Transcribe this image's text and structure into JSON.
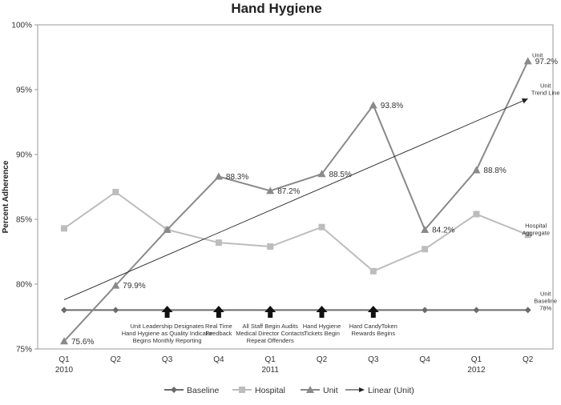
{
  "chart_data": {
    "type": "line",
    "title": "Hand Hygiene",
    "ylabel": "Percent Adherence",
    "xlabel": "",
    "ylim": [
      75,
      100
    ],
    "yticks": [
      "75%",
      "80%",
      "85%",
      "90%",
      "95%",
      "100%"
    ],
    "categories": [
      "Q1",
      "Q2",
      "Q3",
      "Q4",
      "Q1",
      "Q2",
      "Q3",
      "Q4",
      "Q1",
      "Q2"
    ],
    "years": [
      {
        "label": "2010",
        "index": 0
      },
      {
        "label": "2011",
        "index": 4
      },
      {
        "label": "2012",
        "index": 8
      }
    ],
    "series": [
      {
        "name": "Baseline",
        "color": "#6b6b6b",
        "marker": "diamond",
        "values": [
          78,
          78,
          78,
          78,
          78,
          78,
          78,
          78,
          78,
          78
        ]
      },
      {
        "name": "Hospital",
        "color": "#bdbdbd",
        "marker": "square",
        "values": [
          84.3,
          87.1,
          84.2,
          83.2,
          82.9,
          84.4,
          81.0,
          82.7,
          85.4,
          83.8
        ]
      },
      {
        "name": "Unit",
        "color": "#8a8a8a",
        "marker": "triangle",
        "values": [
          75.6,
          79.9,
          84.2,
          88.3,
          87.2,
          88.5,
          93.8,
          84.2,
          88.8,
          97.2
        ],
        "labels": [
          "75.6%",
          "79.9%",
          null,
          "88.3%",
          "87.2%",
          "88.5%",
          "93.8%",
          "84.2%",
          "88.8%",
          "97.2%"
        ]
      }
    ],
    "trendline": {
      "name": "Linear (Unit)",
      "color": "#222222",
      "start": 78.8,
      "end": 94.3
    },
    "annotations": [
      {
        "index": 2,
        "lines": [
          "Unit Leadership Designates",
          "Hand Hygiene as Quality Indicator",
          "Begins Monthly Reporting"
        ]
      },
      {
        "index": 3,
        "lines": [
          "Real Time",
          "Feedback"
        ]
      },
      {
        "index": 4,
        "lines": [
          "All Staff  Begin  Audits",
          "Medical Director Contacts",
          "Repeat Offenders"
        ]
      },
      {
        "index": 5,
        "lines": [
          "Hand Hygiene",
          "Tickets  Begin"
        ]
      },
      {
        "index": 6,
        "lines": [
          "Hard CandyToken",
          "Rewards Begins"
        ]
      }
    ],
    "side_labels": [
      {
        "lines": [
          "Unit"
        ],
        "anchor_value": 97.2,
        "index": 9
      },
      {
        "lines": [
          "Unit",
          "Trend Line"
        ],
        "anchor_value": 94.3,
        "index": 9
      },
      {
        "lines": [
          "Hospital",
          "Aggregate"
        ],
        "anchor_value": 83.8,
        "index": 9
      },
      {
        "lines": [
          "Unit",
          "Baseline",
          "78%"
        ],
        "anchor_value": 78,
        "index": 9
      }
    ],
    "legend_position": "bottom",
    "grid": false
  }
}
